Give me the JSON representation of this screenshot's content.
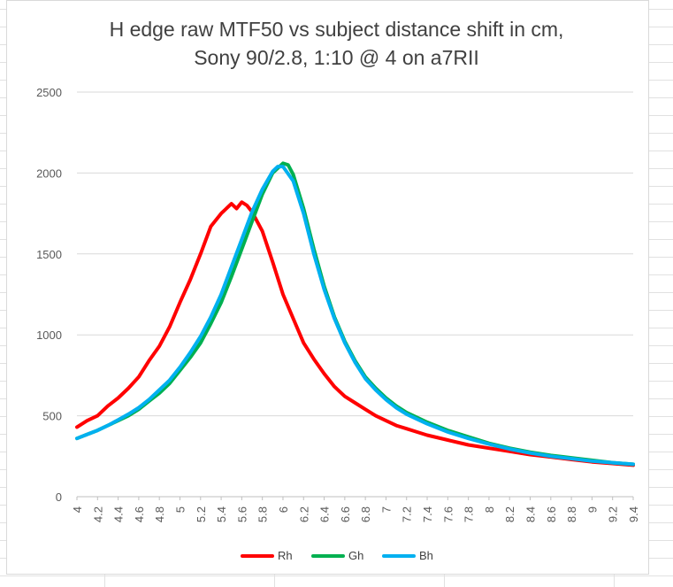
{
  "chart_data": {
    "type": "line",
    "title_line_1": "H edge raw MTF50 vs subject distance shift in cm,",
    "title_line_2": "Sony 90/2.8, 1:10 @ 4 on a7RII",
    "xlabel": "",
    "ylabel": "",
    "ylim": [
      0,
      2500
    ],
    "y_ticks": [
      "0",
      "500",
      "1000",
      "1500",
      "2000",
      "2500"
    ],
    "xlim": [
      4,
      9.4
    ],
    "x_ticks": [
      "4",
      "4.2",
      "4.4",
      "4.6",
      "4.8",
      "5",
      "5.2",
      "5.4",
      "5.6",
      "5.8",
      "6",
      "6.2",
      "6.4",
      "6.6",
      "6.8",
      "7",
      "7.2",
      "7.4",
      "7.6",
      "7.8",
      "8",
      "8.2",
      "8.4",
      "8.6",
      "8.8",
      "9",
      "9.2",
      "9.4"
    ],
    "grid": "horizontal",
    "legend": "bottom",
    "series": [
      {
        "name": "Rh",
        "color": "#ff0000",
        "x": [
          4.0,
          4.1,
          4.2,
          4.3,
          4.4,
          4.5,
          4.6,
          4.7,
          4.8,
          4.9,
          5.0,
          5.1,
          5.2,
          5.3,
          5.4,
          5.5,
          5.55,
          5.6,
          5.65,
          5.7,
          5.8,
          5.9,
          6.0,
          6.1,
          6.2,
          6.3,
          6.4,
          6.5,
          6.6,
          6.7,
          6.8,
          6.9,
          7.0,
          7.1,
          7.2,
          7.3,
          7.4,
          7.6,
          7.8,
          8.0,
          8.2,
          8.4,
          8.6,
          8.8,
          9.0,
          9.2,
          9.4
        ],
        "values": [
          430,
          470,
          500,
          560,
          610,
          670,
          740,
          840,
          930,
          1050,
          1200,
          1340,
          1500,
          1670,
          1750,
          1810,
          1780,
          1820,
          1800,
          1760,
          1640,
          1450,
          1250,
          1100,
          950,
          850,
          760,
          680,
          620,
          580,
          540,
          500,
          470,
          440,
          420,
          400,
          380,
          350,
          320,
          300,
          280,
          260,
          245,
          230,
          215,
          205,
          195
        ]
      },
      {
        "name": "Gh",
        "color": "#00b050",
        "x": [
          4.0,
          4.1,
          4.2,
          4.3,
          4.4,
          4.5,
          4.6,
          4.7,
          4.8,
          4.9,
          5.0,
          5.1,
          5.2,
          5.3,
          5.4,
          5.5,
          5.6,
          5.7,
          5.8,
          5.9,
          6.0,
          6.05,
          6.1,
          6.2,
          6.3,
          6.4,
          6.5,
          6.6,
          6.7,
          6.8,
          6.9,
          7.0,
          7.1,
          7.2,
          7.3,
          7.4,
          7.6,
          7.8,
          8.0,
          8.2,
          8.4,
          8.6,
          8.8,
          9.0,
          9.2,
          9.4
        ],
        "values": [
          360,
          385,
          410,
          440,
          470,
          500,
          540,
          590,
          640,
          700,
          780,
          860,
          950,
          1070,
          1200,
          1360,
          1530,
          1700,
          1870,
          2000,
          2060,
          2050,
          1990,
          1780,
          1530,
          1300,
          1110,
          960,
          840,
          740,
          670,
          610,
          560,
          520,
          490,
          460,
          410,
          370,
          330,
          300,
          275,
          255,
          240,
          225,
          210,
          200
        ]
      },
      {
        "name": "Bh",
        "color": "#00b0f0",
        "x": [
          4.0,
          4.1,
          4.2,
          4.3,
          4.4,
          4.5,
          4.6,
          4.7,
          4.8,
          4.9,
          5.0,
          5.1,
          5.2,
          5.3,
          5.4,
          5.5,
          5.6,
          5.7,
          5.8,
          5.9,
          5.95,
          6.0,
          6.1,
          6.2,
          6.3,
          6.4,
          6.5,
          6.6,
          6.7,
          6.8,
          6.9,
          7.0,
          7.1,
          7.2,
          7.3,
          7.4,
          7.6,
          7.8,
          8.0,
          8.2,
          8.4,
          8.6,
          8.8,
          9.0,
          9.2,
          9.4
        ],
        "values": [
          360,
          385,
          410,
          440,
          475,
          510,
          550,
          600,
          660,
          720,
          800,
          890,
          990,
          1110,
          1250,
          1420,
          1590,
          1760,
          1900,
          2010,
          2040,
          2040,
          1950,
          1750,
          1500,
          1280,
          1100,
          950,
          830,
          730,
          660,
          600,
          550,
          510,
          480,
          450,
          400,
          360,
          325,
          295,
          270,
          250,
          235,
          220,
          210,
          200
        ]
      }
    ]
  }
}
